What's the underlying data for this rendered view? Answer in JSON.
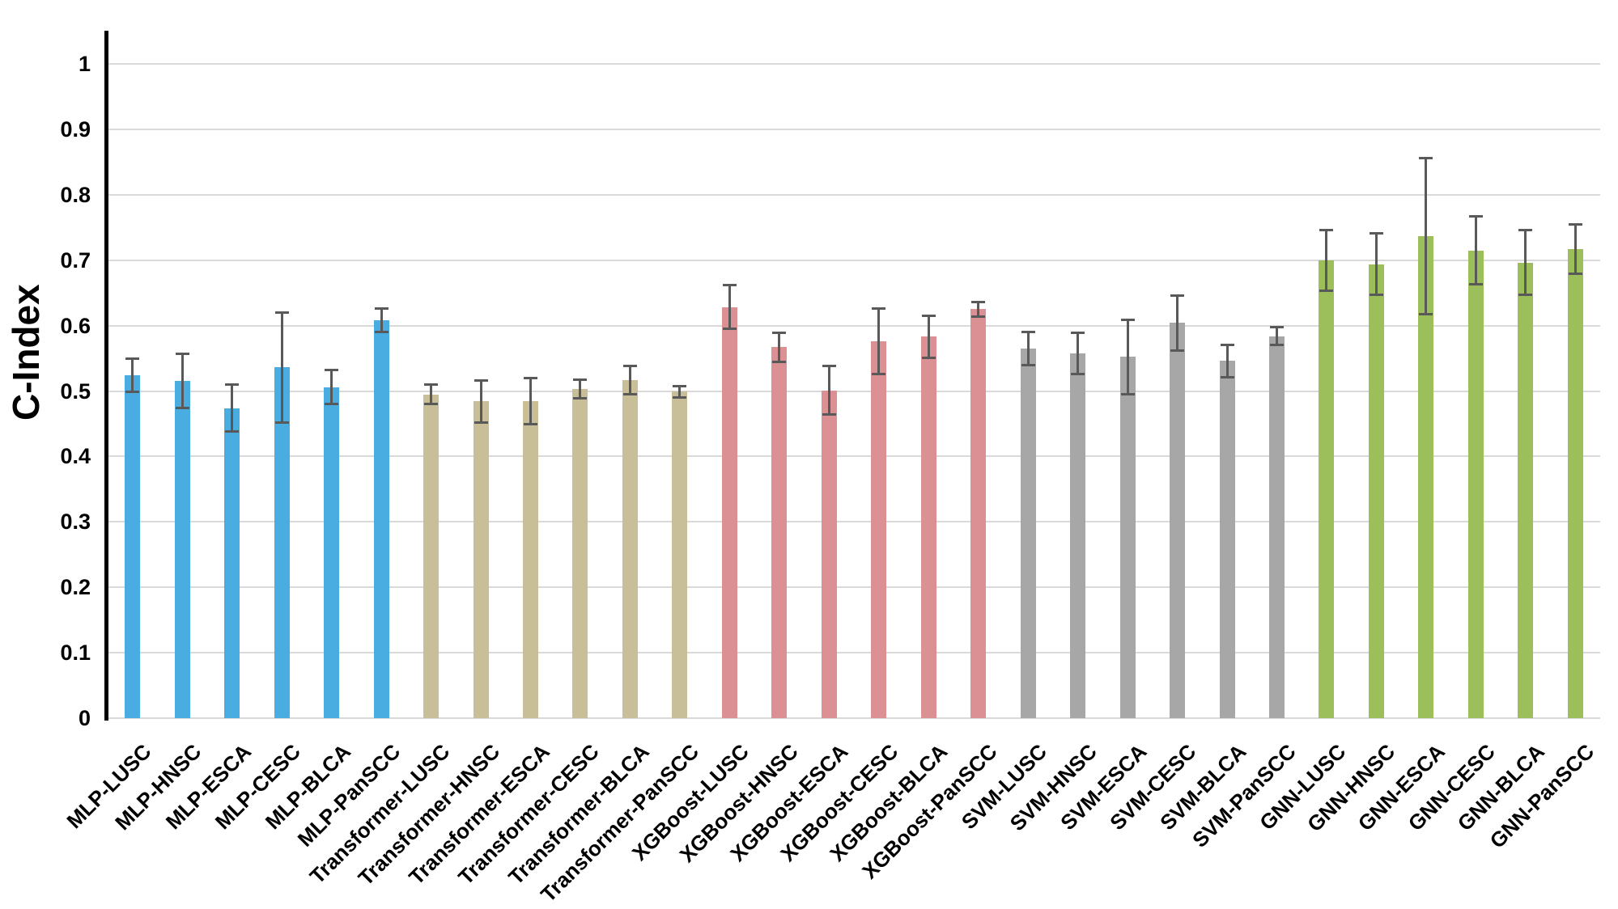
{
  "chart_data": {
    "type": "bar",
    "title": "",
    "xlabel": "",
    "ylabel": "C-Index",
    "ylim": [
      0,
      1
    ],
    "ytick_step": 0.1,
    "ytick_labels": [
      "0",
      "0.1",
      "0.2",
      "0.3",
      "0.4",
      "0.5",
      "0.6",
      "0.7",
      "0.8",
      "0.9",
      "1"
    ],
    "grid": "horizontal",
    "legend": "none",
    "error_bars": true,
    "groups": [
      {
        "name": "MLP",
        "color": "#4AADE2",
        "bars": [
          {
            "label": "MLP-LUSC",
            "value": 0.524,
            "error": 0.026
          },
          {
            "label": "MLP-HNSC",
            "value": 0.516,
            "error": 0.042
          },
          {
            "label": "MLP-ESCA",
            "value": 0.474,
            "error": 0.037
          },
          {
            "label": "MLP-CESC",
            "value": 0.536,
            "error": 0.085
          },
          {
            "label": "MLP-BLCA",
            "value": 0.506,
            "error": 0.027
          },
          {
            "label": "MLP-PanSCC",
            "value": 0.608,
            "error": 0.019
          }
        ]
      },
      {
        "name": "Transformer",
        "color": "#C8BF99",
        "bars": [
          {
            "label": "Transformer-LUSC",
            "value": 0.495,
            "error": 0.016
          },
          {
            "label": "Transformer-HNSC",
            "value": 0.484,
            "error": 0.033
          },
          {
            "label": "Transformer-ESCA",
            "value": 0.485,
            "error": 0.036
          },
          {
            "label": "Transformer-CESC",
            "value": 0.503,
            "error": 0.015
          },
          {
            "label": "Transformer-BLCA",
            "value": 0.517,
            "error": 0.022
          },
          {
            "label": "Transformer-PanSCC",
            "value": 0.499,
            "error": 0.009
          }
        ]
      },
      {
        "name": "XGBoost",
        "color": "#DB9193",
        "bars": [
          {
            "label": "XGBoost-LUSC",
            "value": 0.628,
            "error": 0.034
          },
          {
            "label": "XGBoost-HNSC",
            "value": 0.567,
            "error": 0.023
          },
          {
            "label": "XGBoost-ESCA",
            "value": 0.501,
            "error": 0.038
          },
          {
            "label": "XGBoost-CESC",
            "value": 0.576,
            "error": 0.051
          },
          {
            "label": "XGBoost-BLCA",
            "value": 0.583,
            "error": 0.033
          },
          {
            "label": "XGBoost-PanSCC",
            "value": 0.625,
            "error": 0.012
          }
        ]
      },
      {
        "name": "SVM",
        "color": "#A7A7A7",
        "bars": [
          {
            "label": "SVM-LUSC",
            "value": 0.565,
            "error": 0.026
          },
          {
            "label": "SVM-HNSC",
            "value": 0.557,
            "error": 0.032
          },
          {
            "label": "SVM-ESCA",
            "value": 0.552,
            "error": 0.057
          },
          {
            "label": "SVM-CESC",
            "value": 0.604,
            "error": 0.043
          },
          {
            "label": "SVM-BLCA",
            "value": 0.546,
            "error": 0.025
          },
          {
            "label": "SVM-PanSCC",
            "value": 0.584,
            "error": 0.014
          }
        ]
      },
      {
        "name": "GNN",
        "color": "#9CBF5B",
        "bars": [
          {
            "label": "GNN-LUSC",
            "value": 0.7,
            "error": 0.047
          },
          {
            "label": "GNN-HNSC",
            "value": 0.694,
            "error": 0.048
          },
          {
            "label": "GNN-ESCA",
            "value": 0.737,
            "error": 0.12
          },
          {
            "label": "GNN-CESC",
            "value": 0.715,
            "error": 0.053
          },
          {
            "label": "GNN-BLCA",
            "value": 0.696,
            "error": 0.05
          },
          {
            "label": "GNN-PanSCC",
            "value": 0.717,
            "error": 0.038
          }
        ]
      }
    ],
    "style": {
      "error_bar_color": "#595959",
      "gridline_color": "#D9D9D9",
      "axis_line_color": "#000000",
      "text_color": "#000000",
      "background": "#FFFFFF"
    }
  }
}
